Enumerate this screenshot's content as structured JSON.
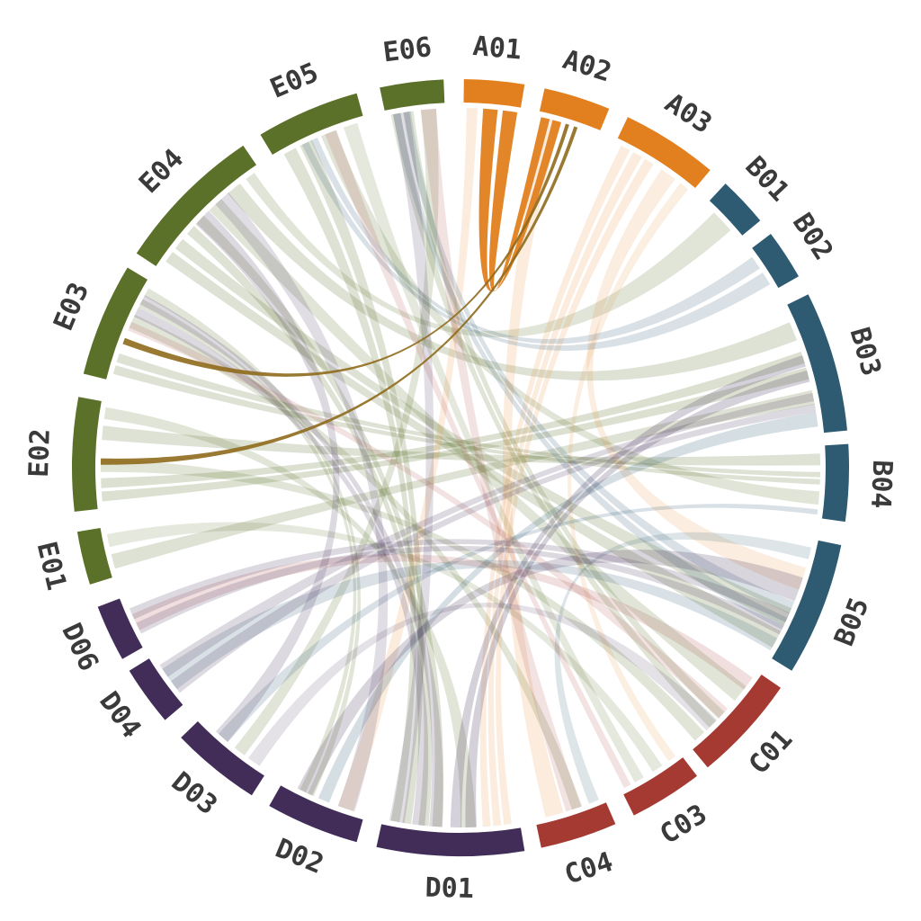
{
  "chart_data": {
    "type": "chord",
    "title": "",
    "background": "#ffffff",
    "label_color": "#3a3a3a",
    "groups": [
      {
        "id": "A",
        "color": "#E2801F"
      },
      {
        "id": "B",
        "color": "#2E5B72"
      },
      {
        "id": "C",
        "color": "#A43A32"
      },
      {
        "id": "D",
        "color": "#412D57"
      },
      {
        "id": "E",
        "color": "#5B7029"
      }
    ],
    "highlight_color": "#8F6A1C",
    "arcs": [
      {
        "label": "A01",
        "group": "A",
        "start_deg": 0.5,
        "end_deg": 9.5
      },
      {
        "label": "A02",
        "group": "A",
        "start_deg": 12.5,
        "end_deg": 22.5
      },
      {
        "label": "A03",
        "group": "A",
        "start_deg": 25.5,
        "end_deg": 40.0
      },
      {
        "label": "B01",
        "group": "B",
        "start_deg": 43.0,
        "end_deg": 50.5
      },
      {
        "label": "B02",
        "group": "B",
        "start_deg": 53.0,
        "end_deg": 60.5
      },
      {
        "label": "B03",
        "group": "B",
        "start_deg": 63.5,
        "end_deg": 84.5
      },
      {
        "label": "B04",
        "group": "B",
        "start_deg": 86.5,
        "end_deg": 98.0
      },
      {
        "label": "B05",
        "group": "B",
        "start_deg": 101.5,
        "end_deg": 121.5
      },
      {
        "label": "C01",
        "group": "C",
        "start_deg": 124.5,
        "end_deg": 140.5
      },
      {
        "label": "C03",
        "group": "C",
        "start_deg": 142.5,
        "end_deg": 153.5
      },
      {
        "label": "C04",
        "group": "C",
        "start_deg": 156.5,
        "end_deg": 168.0
      },
      {
        "label": "D01",
        "group": "D",
        "start_deg": 170.5,
        "end_deg": 192.5
      },
      {
        "label": "D02",
        "group": "D",
        "start_deg": 195.5,
        "end_deg": 209.5
      },
      {
        "label": "D03",
        "group": "D",
        "start_deg": 212.5,
        "end_deg": 226.0
      },
      {
        "label": "D04",
        "group": "D",
        "start_deg": 229.5,
        "end_deg": 238.5
      },
      {
        "label": "D06",
        "group": "D",
        "start_deg": 240.5,
        "end_deg": 249.0
      },
      {
        "label": "E01",
        "group": "E",
        "start_deg": 252.5,
        "end_deg": 260.5
      },
      {
        "label": "E02",
        "group": "E",
        "start_deg": 263.5,
        "end_deg": 280.5
      },
      {
        "label": "E03",
        "group": "E",
        "start_deg": 284.0,
        "end_deg": 301.0
      },
      {
        "label": "E04",
        "group": "E",
        "start_deg": 303.5,
        "end_deg": 326.0
      },
      {
        "label": "E05",
        "group": "E",
        "start_deg": 329.0,
        "end_deg": 344.5
      },
      {
        "label": "E06",
        "group": "E",
        "start_deg": 348.0,
        "end_deg": 357.5
      }
    ],
    "chords": [
      {
        "source": "E04",
        "s": [
          0.05,
          0.28
        ],
        "target": "B05",
        "t": [
          0.55,
          0.95
        ],
        "color_group": "E",
        "opacity": 0.2
      },
      {
        "source": "E04",
        "s": [
          0.3,
          0.5
        ],
        "target": "D01",
        "t": [
          0.55,
          0.75
        ],
        "color_group": "E",
        "opacity": 0.2
      },
      {
        "source": "E04",
        "s": [
          0.52,
          0.68
        ],
        "target": "C01",
        "t": [
          0.15,
          0.4
        ],
        "color_group": "E",
        "opacity": 0.18
      },
      {
        "source": "E04",
        "s": [
          0.7,
          0.85
        ],
        "target": "B03",
        "t": [
          0.1,
          0.3
        ],
        "color_group": "E",
        "opacity": 0.2
      },
      {
        "source": "E04",
        "s": [
          0.87,
          0.97
        ],
        "target": "B01",
        "t": [
          0.15,
          0.85
        ],
        "color_group": "E",
        "opacity": 0.18
      },
      {
        "source": "E05",
        "s": [
          0.08,
          0.45
        ],
        "target": "D01",
        "t": [
          0.78,
          0.95
        ],
        "color_group": "E",
        "opacity": 0.2
      },
      {
        "source": "E05",
        "s": [
          0.5,
          0.72
        ],
        "target": "B04",
        "t": [
          0.6,
          0.85
        ],
        "color_group": "E",
        "opacity": 0.18
      },
      {
        "source": "E05",
        "s": [
          0.75,
          0.95
        ],
        "target": "C03",
        "t": [
          0.6,
          0.8
        ],
        "color_group": "E",
        "opacity": 0.16
      },
      {
        "source": "E06",
        "s": [
          0.06,
          0.5
        ],
        "target": "C01",
        "t": [
          0.5,
          0.75
        ],
        "color_group": "E",
        "opacity": 0.18
      },
      {
        "source": "E06",
        "s": [
          0.55,
          0.9
        ],
        "target": "D03",
        "t": [
          0.3,
          0.5
        ],
        "color_group": "E",
        "opacity": 0.18
      },
      {
        "source": "E02",
        "s": [
          0.05,
          0.3
        ],
        "target": "B03",
        "t": [
          0.35,
          0.6
        ],
        "color_group": "E",
        "opacity": 0.22
      },
      {
        "source": "E02",
        "s": [
          0.32,
          0.48
        ],
        "target": "C01",
        "t": [
          0.78,
          0.95
        ],
        "color_group": "E",
        "opacity": 0.18
      },
      {
        "source": "E02",
        "s": [
          0.62,
          0.8
        ],
        "target": "B04",
        "t": [
          0.08,
          0.3
        ],
        "color_group": "E",
        "opacity": 0.2
      },
      {
        "source": "E02",
        "s": [
          0.82,
          0.97
        ],
        "target": "D01",
        "t": [
          0.3,
          0.45
        ],
        "color_group": "E",
        "opacity": 0.18
      },
      {
        "source": "E03",
        "s": [
          0.05,
          0.28
        ],
        "target": "B04",
        "t": [
          0.35,
          0.55
        ],
        "color_group": "E",
        "opacity": 0.2
      },
      {
        "source": "E03",
        "s": [
          0.5,
          0.68
        ],
        "target": "C04",
        "t": [
          0.3,
          0.5
        ],
        "color_group": "E",
        "opacity": 0.18
      },
      {
        "source": "E03",
        "s": [
          0.72,
          0.95
        ],
        "target": "D02",
        "t": [
          0.6,
          0.8
        ],
        "color_group": "E",
        "opacity": 0.18
      },
      {
        "source": "E01",
        "s": [
          0.1,
          0.5
        ],
        "target": "B03",
        "t": [
          0.65,
          0.8
        ],
        "color_group": "E",
        "opacity": 0.2
      },
      {
        "source": "E01",
        "s": [
          0.55,
          0.9
        ],
        "target": "C03",
        "t": [
          0.28,
          0.5
        ],
        "color_group": "E",
        "opacity": 0.16
      },
      {
        "source": "A01",
        "s": [
          0.02,
          0.28
        ],
        "target": "D02",
        "t": [
          0.1,
          0.35
        ],
        "color_group": "A",
        "opacity": 0.15
      },
      {
        "source": "A02",
        "s": [
          0.05,
          0.42
        ],
        "target": "C04",
        "t": [
          0.55,
          0.9
        ],
        "color_group": "A",
        "opacity": 0.15
      },
      {
        "source": "A03",
        "s": [
          0.05,
          0.5
        ],
        "target": "D01",
        "t": [
          0.05,
          0.28
        ],
        "color_group": "A",
        "opacity": 0.15
      },
      {
        "source": "A03",
        "s": [
          0.55,
          0.8
        ],
        "target": "B05",
        "t": [
          0.2,
          0.45
        ],
        "color_group": "A",
        "opacity": 0.14
      },
      {
        "source": "A03",
        "s": [
          0.82,
          0.97
        ],
        "target": "C03",
        "t": [
          0.05,
          0.22
        ],
        "color_group": "A",
        "opacity": 0.13
      },
      {
        "source": "B03",
        "s": [
          0.82,
          0.97
        ],
        "target": "D02",
        "t": [
          0.4,
          0.58
        ],
        "color_group": "B",
        "opacity": 0.2
      },
      {
        "source": "B04",
        "s": [
          0.87,
          0.97
        ],
        "target": "D03",
        "t": [
          0.55,
          0.75
        ],
        "color_group": "B",
        "opacity": 0.18
      },
      {
        "source": "B05",
        "s": [
          0.05,
          0.18
        ],
        "target": "C04",
        "t": [
          0.05,
          0.25
        ],
        "color_group": "B",
        "opacity": 0.16
      },
      {
        "source": "B05",
        "s": [
          0.82,
          0.97
        ],
        "target": "D04",
        "t": [
          0.2,
          0.8
        ],
        "color_group": "B",
        "opacity": 0.18
      },
      {
        "source": "B05",
        "s": [
          0.5,
          0.78
        ],
        "target": "E06",
        "t": [
          0.1,
          0.45
        ],
        "color_group": "B",
        "opacity": 0.18
      },
      {
        "source": "B02",
        "s": [
          0.1,
          0.9
        ],
        "target": "E05",
        "t": [
          0.3,
          0.5
        ],
        "color_group": "B",
        "opacity": 0.18
      },
      {
        "source": "C01",
        "s": [
          0.05,
          0.25
        ],
        "target": "D06",
        "t": [
          0.25,
          0.7
        ],
        "color_group": "C",
        "opacity": 0.16
      },
      {
        "source": "C01",
        "s": [
          0.45,
          0.62
        ],
        "target": "E03",
        "t": [
          0.48,
          0.6
        ],
        "color_group": "C",
        "opacity": 0.14
      },
      {
        "source": "C03",
        "s": [
          0.82,
          0.97
        ],
        "target": "E05",
        "t": [
          0.55,
          0.72
        ],
        "color_group": "C",
        "opacity": 0.14
      },
      {
        "source": "C04",
        "s": [
          0.3,
          0.6
        ],
        "target": "E06",
        "t": [
          0.55,
          0.9
        ],
        "color_group": "C",
        "opacity": 0.14
      },
      {
        "source": "D01",
        "s": [
          0.3,
          0.52
        ],
        "target": "B03",
        "t": [
          0.38,
          0.62
        ],
        "color_group": "D",
        "opacity": 0.22
      },
      {
        "source": "D01",
        "s": [
          0.55,
          0.8
        ],
        "target": "E03",
        "t": [
          0.62,
          0.88
        ],
        "color_group": "D",
        "opacity": 0.18
      },
      {
        "source": "D01",
        "s": [
          0.82,
          0.97
        ],
        "target": "E06",
        "t": [
          0.08,
          0.45
        ],
        "color_group": "D",
        "opacity": 0.16
      },
      {
        "source": "D02",
        "s": [
          0.6,
          0.85
        ],
        "target": "B05",
        "t": [
          0.28,
          0.55
        ],
        "color_group": "D",
        "opacity": 0.2
      },
      {
        "source": "D02",
        "s": [
          0.08,
          0.35
        ],
        "target": "E04",
        "t": [
          0.58,
          0.75
        ],
        "color_group": "D",
        "opacity": 0.16
      },
      {
        "source": "D03",
        "s": [
          0.55,
          0.8
        ],
        "target": "E04",
        "t": [
          0.38,
          0.56
        ],
        "color_group": "D",
        "opacity": 0.18
      },
      {
        "source": "D03",
        "s": [
          0.08,
          0.3
        ],
        "target": "C01",
        "t": [
          0.6,
          0.8
        ],
        "color_group": "D",
        "opacity": 0.14
      },
      {
        "source": "D04",
        "s": [
          0.15,
          0.85
        ],
        "target": "B03",
        "t": [
          0.68,
          0.85
        ],
        "color_group": "D",
        "opacity": 0.18
      },
      {
        "source": "D06",
        "s": [
          0.2,
          0.8
        ],
        "target": "B05",
        "t": [
          0.6,
          0.82
        ],
        "color_group": "D",
        "opacity": 0.18
      },
      {
        "source": "A01",
        "s": [
          0.3,
          1.0
        ],
        "target": "A02",
        "t": [
          0.02,
          0.4
        ],
        "color_group": "A",
        "opacity": 0.95,
        "highlight": true
      },
      {
        "source": "A02",
        "s": [
          0.44,
          0.52
        ],
        "target": "E03",
        "t": [
          0.35,
          0.43
        ],
        "color": "#8F6A1C",
        "opacity": 0.9,
        "highlight": true
      },
      {
        "source": "A02",
        "s": [
          0.58,
          0.66
        ],
        "target": "E02",
        "t": [
          0.4,
          0.48
        ],
        "color": "#8F6A1C",
        "opacity": 0.9,
        "highlight": true
      }
    ],
    "layout": {
      "center": [
        512,
        520
      ],
      "inner_radius": 406,
      "outer_radius": 432,
      "chord_radius": 400,
      "label_radius": 468
    }
  }
}
